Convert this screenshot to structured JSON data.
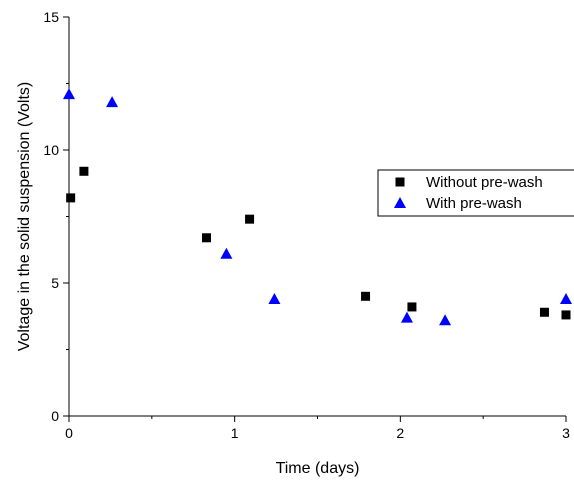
{
  "chart_data": {
    "type": "scatter",
    "title": "",
    "xlabel": "Time (days)",
    "ylabel": "Voltage in the solid suspension (Volts)",
    "xlim": [
      0,
      3
    ],
    "ylim": [
      0,
      15
    ],
    "x_ticks": [
      0,
      1,
      2,
      3
    ],
    "x_tick_labels": [
      "0",
      "1",
      "2",
      "3"
    ],
    "y_ticks": [
      0,
      5,
      10,
      15
    ],
    "y_tick_labels": [
      "0",
      "5",
      "10",
      "15"
    ],
    "grid": false,
    "legend_position": "right",
    "series": [
      {
        "name": "Without pre-wash",
        "marker": "square",
        "color": "#000000",
        "x": [
          0.01,
          0.09,
          0.83,
          1.09,
          1.79,
          2.07,
          2.87,
          3.0
        ],
        "y": [
          8.2,
          9.2,
          6.7,
          7.4,
          4.5,
          4.1,
          3.9,
          3.8
        ]
      },
      {
        "name": "With pre-wash",
        "marker": "triangle",
        "color": "#0000ff",
        "x": [
          0.0,
          0.26,
          0.95,
          1.24,
          2.04,
          2.27,
          3.0
        ],
        "y": [
          12.1,
          11.8,
          6.1,
          4.4,
          3.7,
          3.6,
          4.4
        ]
      }
    ]
  }
}
